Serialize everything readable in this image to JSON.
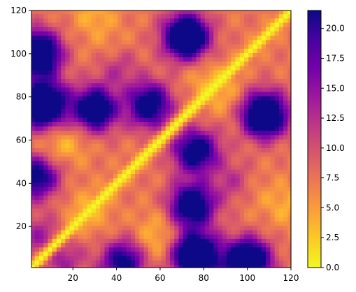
{
  "chart_data": {
    "type": "heatmap",
    "title": "",
    "xlabel": "",
    "ylabel": "",
    "xlim": [
      1,
      120
    ],
    "ylim": [
      1,
      120
    ],
    "x_ticks": [
      20,
      40,
      60,
      80,
      100,
      120
    ],
    "y_ticks": [
      20,
      40,
      60,
      80,
      100,
      120
    ],
    "x_tick_labels": [
      "20",
      "40",
      "60",
      "80",
      "100",
      "120"
    ],
    "y_tick_labels": [
      "20",
      "40",
      "60",
      "80",
      "100",
      "120"
    ],
    "colormap": "plasma_r",
    "colormap_stops": [
      "#f0f921",
      "#fdca26",
      "#fb9f3a",
      "#ed7953",
      "#d8576b",
      "#bd3786",
      "#9c179e",
      "#7201a8",
      "#46039f",
      "#0d0887"
    ],
    "value_range": [
      0,
      21.5
    ],
    "colorbar_ticks": [
      0.0,
      2.5,
      5.0,
      7.5,
      10.0,
      12.5,
      15.0,
      17.5,
      20.0
    ],
    "colorbar_tick_labels": [
      "0.0",
      "2.5",
      "5.0",
      "7.5",
      "10.0",
      "12.5",
      "15.0",
      "17.5",
      "20.0"
    ],
    "symmetric": true,
    "diagonal_value": 0,
    "base_value": 7.5,
    "blobs": [
      {
        "x": 2,
        "y": 100,
        "value": 20
      },
      {
        "x": 5,
        "y": 75,
        "value": 21
      },
      {
        "x": 30,
        "y": 74,
        "value": 17
      },
      {
        "x": 72,
        "y": 108,
        "value": 20
      },
      {
        "x": 55,
        "y": 75,
        "value": 17
      },
      {
        "x": 108,
        "y": 72,
        "value": 20
      },
      {
        "x": 78,
        "y": 55,
        "value": 16
      },
      {
        "x": 2,
        "y": 42,
        "value": 16
      },
      {
        "x": 75,
        "y": 30,
        "value": 18
      },
      {
        "x": 78,
        "y": 8,
        "value": 21
      },
      {
        "x": 100,
        "y": 5,
        "value": 21
      },
      {
        "x": 45,
        "y": 5,
        "value": 16
      },
      {
        "x": 95,
        "y": 40,
        "value": 14
      },
      {
        "x": 15,
        "y": 5,
        "value": 14
      },
      {
        "x": 38,
        "y": 100,
        "value": 4
      },
      {
        "x": 10,
        "y": 55,
        "value": 4
      },
      {
        "x": 25,
        "y": 30,
        "value": 5
      },
      {
        "x": 60,
        "y": 20,
        "value": 5
      },
      {
        "x": 88,
        "y": 82,
        "value": 4
      },
      {
        "x": 30,
        "y": 118,
        "value": 4
      }
    ]
  }
}
